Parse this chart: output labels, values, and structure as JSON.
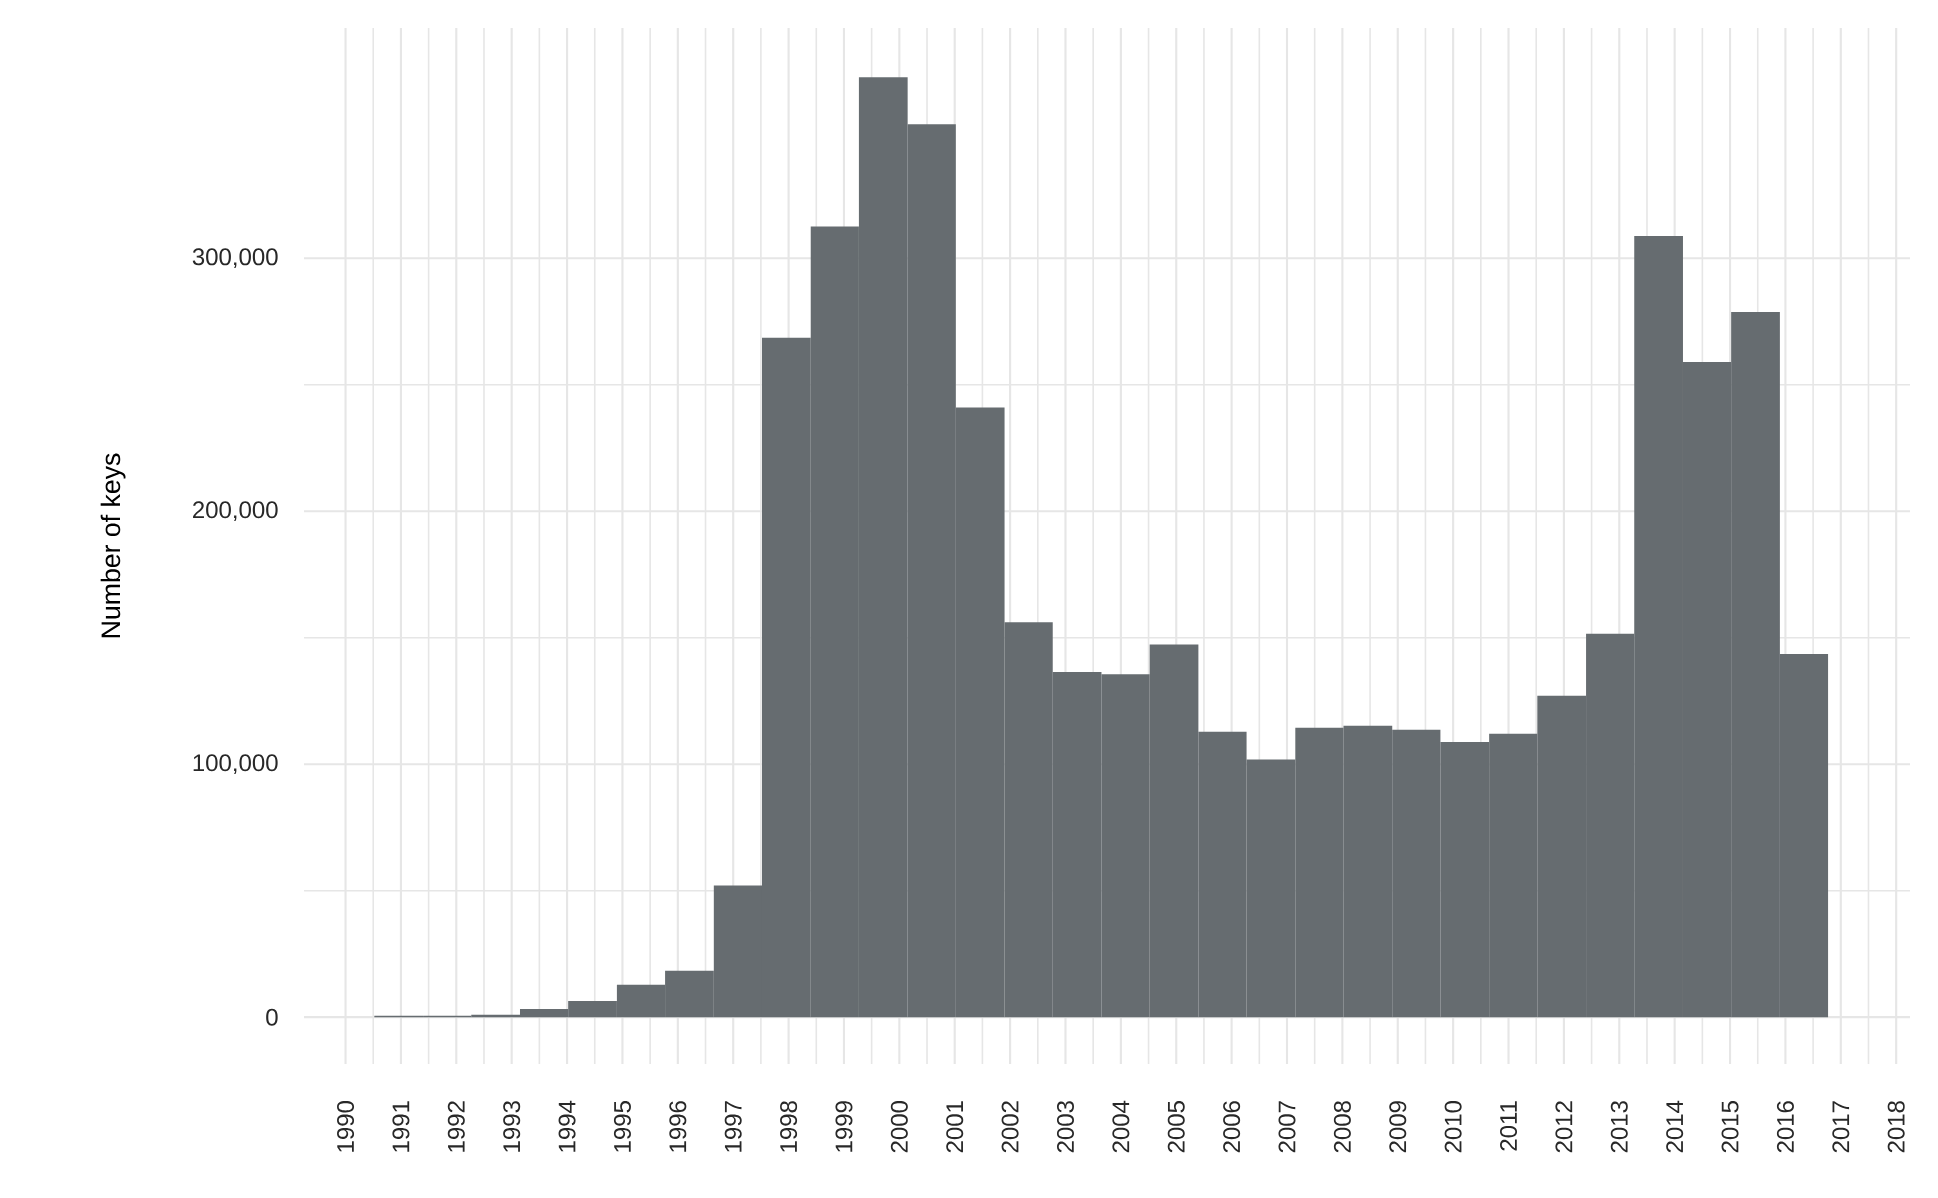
{
  "chart_data": {
    "type": "histogram",
    "ylabel": "Number of keys",
    "color": "#666c70",
    "grid": true,
    "bins": [
      1990.52,
      1991.4,
      1992.27,
      1993.15,
      1994.02,
      1994.9,
      1995.77,
      1996.65,
      1997.52,
      1998.4,
      1999.27,
      2000.15,
      2001.02,
      2001.9,
      2002.77,
      2003.65,
      2004.52,
      2005.4,
      2006.27,
      2007.15,
      2008.02,
      2008.9,
      2009.77,
      2010.65,
      2011.52,
      2012.4,
      2013.27,
      2014.15,
      2015.02,
      2015.9,
      2016.77
    ],
    "values": [
      600,
      600,
      1000,
      3200,
      6400,
      12800,
      18400,
      52100,
      268600,
      312500,
      371500,
      352900,
      241000,
      156100,
      136400,
      135600,
      147300,
      112800,
      101900,
      114400,
      115200,
      113600,
      108800,
      112000,
      127100,
      151600,
      308800,
      259000,
      278700,
      143600
    ],
    "xlim": [
      1989.25,
      2018.25
    ],
    "ylim": [
      -18500,
      391000
    ],
    "xticks": [
      1990,
      1991,
      1992,
      1993,
      1994,
      1995,
      1996,
      1997,
      1998,
      1999,
      2000,
      2001,
      2002,
      2003,
      2004,
      2005,
      2006,
      2007,
      2008,
      2009,
      2010,
      2011,
      2012,
      2013,
      2014,
      2015,
      2016,
      2017,
      2018
    ],
    "yticks": [
      0,
      {
        "value": 100000,
        "label": "100,000"
      },
      {
        "value": 200000,
        "label": "200,000"
      },
      {
        "value": 300000,
        "label": "300,000"
      }
    ]
  }
}
